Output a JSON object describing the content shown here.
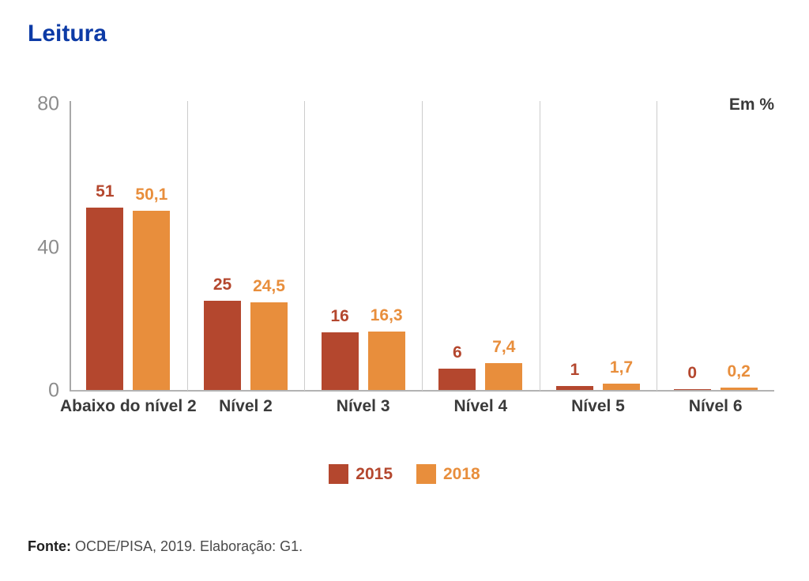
{
  "title": "Leitura",
  "title_color": "#0d3ba6",
  "unit_label": "Em %",
  "footer": {
    "source_label": "Fonte:",
    "source_text": " OCDE/PISA, 2019. Elaboração: G1."
  },
  "legend": [
    {
      "label": "2015",
      "color": "#b4472e"
    },
    {
      "label": "2018",
      "color": "#e88e3c"
    }
  ],
  "chart_data": {
    "type": "bar",
    "title": "Leitura",
    "unit": "Em %",
    "categories": [
      "Abaixo do nível 2",
      "Nível 2",
      "Nível 3",
      "Nível 4",
      "Nível 5",
      "Nível 6"
    ],
    "series": [
      {
        "name": "2015",
        "color": "#b4472e",
        "values": [
          51,
          25,
          16,
          6,
          1,
          0
        ],
        "labels": [
          "51",
          "25",
          "16",
          "6",
          "1",
          "0"
        ]
      },
      {
        "name": "2018",
        "color": "#e88e3c",
        "values": [
          50.1,
          24.5,
          16.3,
          7.4,
          1.7,
          0.2
        ],
        "labels": [
          "50,1",
          "24,5",
          "16,3",
          "7,4",
          "1,7",
          "0,2"
        ]
      }
    ],
    "yticks": [
      0,
      40,
      80
    ],
    "ylim": [
      0,
      80
    ],
    "grid": "vertical-category-separators",
    "legend_position": "bottom-center",
    "source": "Fonte: OCDE/PISA, 2019. Elaboração: G1."
  }
}
